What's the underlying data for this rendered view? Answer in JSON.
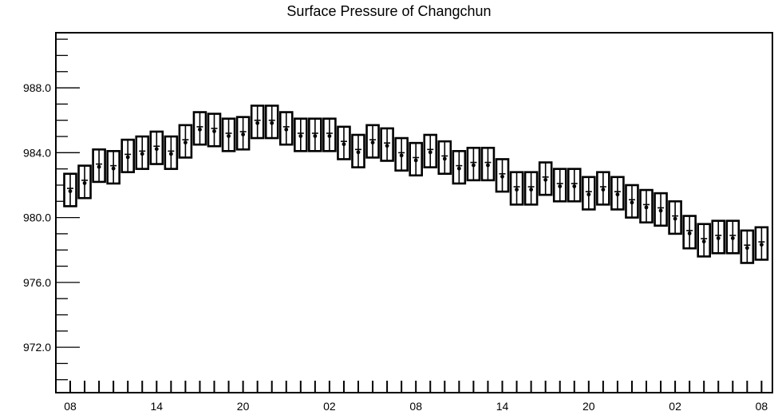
{
  "chart_data": {
    "type": "scatter",
    "title": "Surface Pressure of Changchun",
    "xlabel": "",
    "ylabel": "",
    "ylim": [
      969.2,
      991.4
    ],
    "yticks": [
      972.0,
      976.0,
      980.0,
      984.0,
      988.0
    ],
    "ytick_labels": [
      "972.0",
      "976.0",
      "980.0",
      "984.0",
      "988.0"
    ],
    "y_minor_step": 1.0,
    "x_time_step_hours": 1,
    "x_tick_labels": [
      "08",
      "14",
      "20",
      "02",
      "08",
      "14",
      "20",
      "02",
      "08"
    ],
    "x_tick_label_every": 6,
    "box_halfwidth": 1.0,
    "grid": false,
    "series": [
      {
        "values": [
          981.7,
          982.2,
          983.2,
          983.1,
          983.8,
          984.0,
          984.3,
          984.0,
          984.7,
          985.5,
          985.4,
          985.1,
          985.2,
          985.9,
          985.9,
          985.5,
          985.1,
          985.1,
          985.1,
          984.6,
          984.1,
          984.7,
          984.5,
          983.9,
          983.6,
          984.1,
          983.7,
          983.1,
          983.3,
          983.3,
          982.6,
          981.8,
          981.8,
          982.4,
          982.0,
          982.0,
          981.5,
          981.8,
          981.5,
          981.0,
          980.7,
          980.5,
          980.0,
          979.1,
          978.6,
          978.8,
          978.8,
          978.2,
          978.4
        ]
      }
    ]
  }
}
